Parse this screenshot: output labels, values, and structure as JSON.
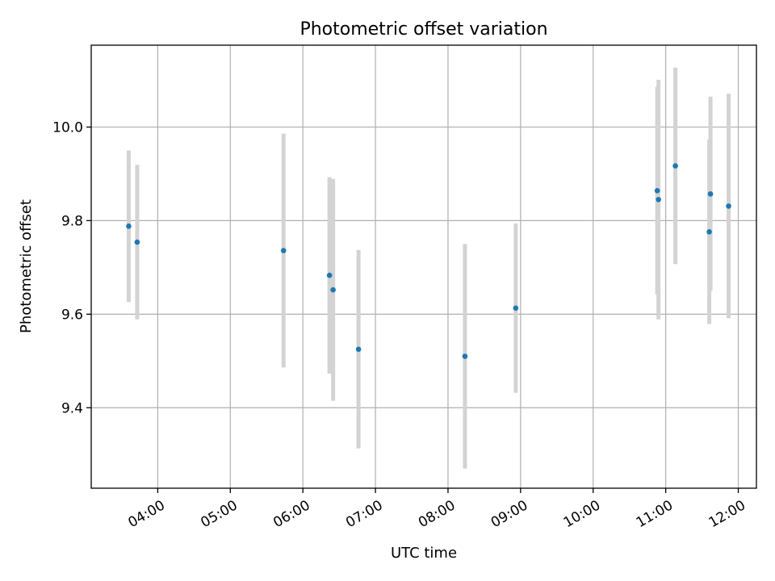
{
  "chart_data": {
    "type": "scatter",
    "title": "Photometric offset variation",
    "xlabel": "UTC time",
    "ylabel": "Photometric offset",
    "x_type": "time",
    "xlim": [
      "03:05",
      "12:15"
    ],
    "ylim": [
      9.228,
      10.175
    ],
    "x_ticks": [
      "04:00",
      "05:00",
      "06:00",
      "07:00",
      "08:00",
      "09:00",
      "10:00",
      "11:00",
      "12:00"
    ],
    "y_ticks": [
      9.4,
      9.6,
      9.8,
      10.0
    ],
    "y_tick_labels": [
      "9.4",
      "9.6",
      "9.8",
      "10.0"
    ],
    "grid": true,
    "point_color": "#1f77b4",
    "errorbar_color": "#d3d3d3",
    "points": [
      {
        "x": "03:36",
        "y": 9.788,
        "yerr": 0.162
      },
      {
        "x": "03:43",
        "y": 9.754,
        "yerr": 0.165
      },
      {
        "x": "05:44",
        "y": 9.736,
        "yerr": 0.25
      },
      {
        "x": "06:22",
        "y": 9.683,
        "yerr": 0.21
      },
      {
        "x": "06:25",
        "y": 9.652,
        "yerr": 0.237
      },
      {
        "x": "06:46",
        "y": 9.525,
        "yerr": 0.212
      },
      {
        "x": "08:14",
        "y": 9.51,
        "yerr": 0.24
      },
      {
        "x": "08:56",
        "y": 9.613,
        "yerr": 0.181
      },
      {
        "x": "10:53",
        "y": 9.864,
        "yerr": 0.222
      },
      {
        "x": "10:54",
        "y": 9.845,
        "yerr": 0.256
      },
      {
        "x": "11:08",
        "y": 9.917,
        "yerr": 0.21
      },
      {
        "x": "11:36",
        "y": 9.776,
        "yerr": 0.197
      },
      {
        "x": "11:37",
        "y": 9.857,
        "yerr": 0.208
      },
      {
        "x": "11:52",
        "y": 9.831,
        "yerr": 0.24
      }
    ]
  }
}
